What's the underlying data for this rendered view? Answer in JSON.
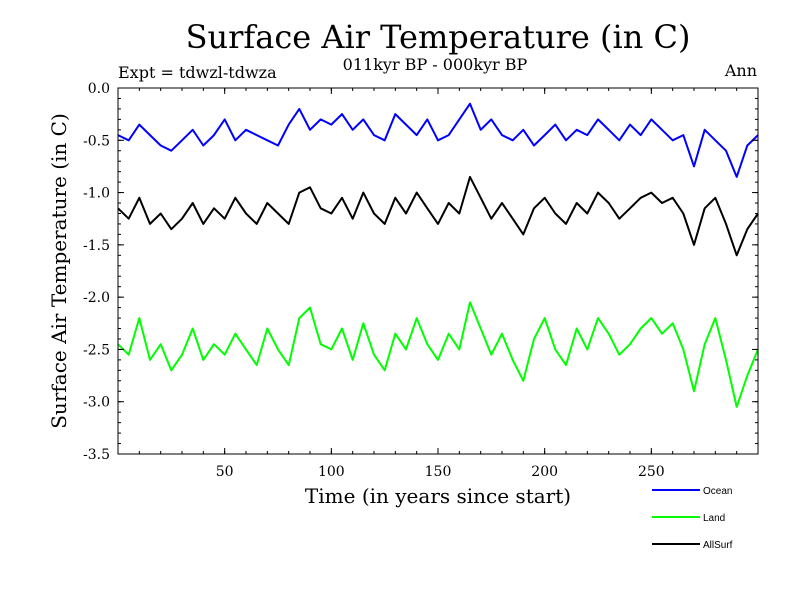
{
  "header": {
    "title": "Surface Air Temperature (in C)",
    "subtitle": "011kyr BP - 000kyr BP",
    "experiment": "Expt = tdwzl-tdwza",
    "season": "Ann"
  },
  "chart_data": {
    "type": "line",
    "title": "Surface Air Temperature (in C)",
    "subtitle": "011kyr BP - 000kyr BP",
    "xlabel": "Time (in years since start)",
    "ylabel": "Surface Air Temperature (in C)",
    "xlim": [
      0,
      300
    ],
    "ylim": [
      -3.5,
      0.0
    ],
    "x_ticks": [
      50,
      100,
      150,
      200,
      250
    ],
    "x_tick_labels": [
      "50",
      "100",
      "150",
      "200",
      "250"
    ],
    "y_ticks": [
      0.0,
      -0.5,
      -1.0,
      -1.5,
      -2.0,
      -2.5,
      -3.0,
      -3.5
    ],
    "y_tick_labels": [
      "0.0",
      "-0.5",
      "-1.0",
      "-1.5",
      "-2.0",
      "-2.5",
      "-3.0",
      "-3.5"
    ],
    "grid": false,
    "legend_position": "below-right",
    "x": [
      0,
      5,
      10,
      15,
      20,
      25,
      30,
      35,
      40,
      45,
      50,
      55,
      60,
      65,
      70,
      75,
      80,
      85,
      90,
      95,
      100,
      105,
      110,
      115,
      120,
      125,
      130,
      135,
      140,
      145,
      150,
      155,
      160,
      165,
      170,
      175,
      180,
      185,
      190,
      195,
      200,
      205,
      210,
      215,
      220,
      225,
      230,
      235,
      240,
      245,
      250,
      255,
      260,
      265,
      270,
      275,
      280,
      285,
      290,
      295,
      300
    ],
    "series": [
      {
        "name": "Ocean",
        "color": "#0000ff",
        "values": [
          -0.45,
          -0.5,
          -0.35,
          -0.45,
          -0.55,
          -0.6,
          -0.5,
          -0.4,
          -0.55,
          -0.45,
          -0.3,
          -0.5,
          -0.4,
          -0.45,
          -0.5,
          -0.55,
          -0.35,
          -0.2,
          -0.4,
          -0.3,
          -0.35,
          -0.25,
          -0.4,
          -0.3,
          -0.45,
          -0.5,
          -0.25,
          -0.35,
          -0.45,
          -0.3,
          -0.5,
          -0.45,
          -0.3,
          -0.15,
          -0.4,
          -0.3,
          -0.45,
          -0.5,
          -0.4,
          -0.55,
          -0.45,
          -0.35,
          -0.5,
          -0.4,
          -0.45,
          -0.3,
          -0.4,
          -0.5,
          -0.35,
          -0.45,
          -0.3,
          -0.4,
          -0.5,
          -0.45,
          -0.75,
          -0.4,
          -0.5,
          -0.6,
          -0.85,
          -0.55,
          -0.45
        ]
      },
      {
        "name": "Land",
        "color": "#00ff00",
        "values": [
          -2.45,
          -2.55,
          -2.2,
          -2.6,
          -2.45,
          -2.7,
          -2.55,
          -2.3,
          -2.6,
          -2.45,
          -2.55,
          -2.35,
          -2.5,
          -2.65,
          -2.3,
          -2.5,
          -2.65,
          -2.2,
          -2.1,
          -2.45,
          -2.5,
          -2.3,
          -2.6,
          -2.25,
          -2.55,
          -2.7,
          -2.35,
          -2.5,
          -2.2,
          -2.45,
          -2.6,
          -2.35,
          -2.5,
          -2.05,
          -2.3,
          -2.55,
          -2.35,
          -2.6,
          -2.8,
          -2.4,
          -2.2,
          -2.5,
          -2.65,
          -2.3,
          -2.5,
          -2.2,
          -2.35,
          -2.55,
          -2.45,
          -2.3,
          -2.2,
          -2.35,
          -2.25,
          -2.5,
          -2.9,
          -2.45,
          -2.2,
          -2.6,
          -3.05,
          -2.75,
          -2.5
        ]
      },
      {
        "name": "AllSurf",
        "color": "#000000",
        "values": [
          -1.15,
          -1.25,
          -1.05,
          -1.3,
          -1.2,
          -1.35,
          -1.25,
          -1.1,
          -1.3,
          -1.15,
          -1.25,
          -1.05,
          -1.2,
          -1.3,
          -1.1,
          -1.2,
          -1.3,
          -1.0,
          -0.95,
          -1.15,
          -1.2,
          -1.05,
          -1.25,
          -1.0,
          -1.2,
          -1.3,
          -1.05,
          -1.2,
          -1.0,
          -1.15,
          -1.3,
          -1.1,
          -1.2,
          -0.85,
          -1.05,
          -1.25,
          -1.1,
          -1.25,
          -1.4,
          -1.15,
          -1.05,
          -1.2,
          -1.3,
          -1.1,
          -1.2,
          -1.0,
          -1.1,
          -1.25,
          -1.15,
          -1.05,
          -1.0,
          -1.1,
          -1.05,
          -1.2,
          -1.5,
          -1.15,
          -1.05,
          -1.3,
          -1.6,
          -1.35,
          -1.2
        ]
      }
    ]
  }
}
